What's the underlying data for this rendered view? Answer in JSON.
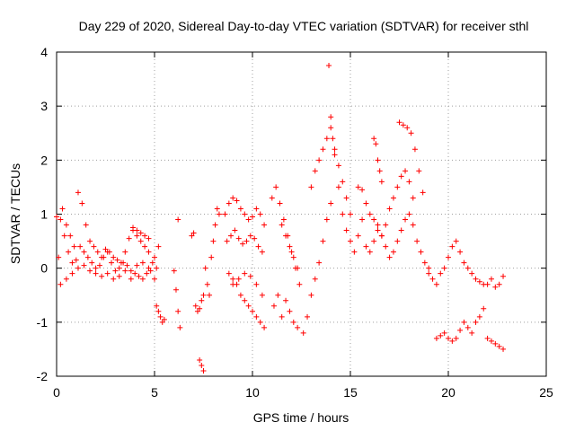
{
  "chart_data": {
    "type": "scatter",
    "title": "Day 229 of 2020, Sidereal Day-to-day VTEC variation (SDTVAR) for receiver sthl",
    "xlabel": "GPS time / hours",
    "ylabel": "SDTVAR / TECUs",
    "xlim": [
      0,
      25
    ],
    "ylim": [
      -2,
      4
    ],
    "x_ticks": [
      "0",
      "5",
      "10",
      "15",
      "20",
      "25"
    ],
    "y_ticks": [
      "-2",
      "-1",
      "0",
      "1",
      "2",
      "3",
      "4"
    ],
    "grid": true,
    "marker": "+",
    "color": "#ff0000",
    "series": [
      {
        "name": "SDTVAR",
        "x": [
          0.0,
          0.2,
          0.4,
          0.6,
          0.8,
          1.0,
          1.2,
          1.4,
          1.6,
          1.8,
          2.0,
          2.2,
          2.4,
          2.6,
          2.8,
          3.0,
          3.2,
          3.4,
          3.6,
          3.8,
          4.0,
          4.2,
          4.4,
          4.6,
          4.8,
          5.0,
          5.2,
          0.1,
          0.3,
          0.5,
          0.7,
          0.9,
          1.1,
          1.3,
          1.5,
          1.7,
          1.9,
          2.1,
          2.3,
          2.5,
          2.7,
          2.9,
          3.1,
          3.3,
          3.5,
          3.7,
          3.9,
          4.1,
          4.3,
          4.5,
          4.7,
          4.9,
          5.1,
          0.2,
          0.5,
          0.8,
          1.1,
          1.4,
          1.7,
          2.0,
          2.3,
          2.6,
          2.9,
          3.2,
          3.5,
          3.8,
          4.1,
          4.4,
          4.7,
          5.0,
          5.1,
          5.2,
          5.3,
          5.4,
          5.5,
          6.0,
          6.1,
          6.2,
          6.3,
          6.9,
          7.0,
          7.1,
          7.2,
          7.3,
          7.4,
          7.5,
          7.3,
          7.4,
          7.5,
          7.6,
          7.7,
          7.8,
          7.9,
          8.0,
          8.1,
          8.2,
          8.3,
          8.6,
          8.8,
          9.0,
          9.2,
          9.4,
          9.6,
          9.8,
          10.0,
          10.2,
          10.4,
          10.6,
          8.7,
          8.9,
          9.1,
          9.3,
          9.5,
          9.7,
          9.9,
          10.1,
          10.3,
          10.5,
          8.8,
          9.0,
          9.2,
          9.4,
          9.6,
          9.8,
          10.0,
          10.2,
          10.4,
          10.6,
          9.0,
          9.3,
          9.6,
          9.9,
          10.2,
          10.5,
          11.0,
          11.2,
          11.4,
          11.6,
          11.8,
          12.0,
          12.2,
          12.4,
          11.1,
          11.3,
          11.5,
          11.7,
          11.9,
          12.1,
          12.3,
          11.5,
          11.7,
          11.9,
          12.1,
          12.3,
          12.6,
          12.8,
          13.0,
          13.2,
          13.4,
          13.6,
          13.8,
          14.0,
          13.0,
          13.2,
          13.4,
          13.6,
          13.8,
          14.0,
          14.2,
          14.4,
          14.6,
          14.8,
          15.0,
          15.2,
          15.4,
          15.6,
          13.9,
          14.0,
          14.1,
          14.2,
          14.4,
          14.6,
          14.8,
          15.0,
          15.4,
          15.6,
          15.8,
          16.0,
          16.2,
          16.4,
          16.6,
          16.8,
          17.0,
          17.2,
          17.4,
          17.6,
          17.8,
          18.0,
          18.2,
          15.8,
          16.0,
          16.2,
          16.4,
          16.6,
          16.8,
          17.0,
          17.2,
          17.4,
          17.6,
          17.8,
          18.0,
          18.2,
          18.4,
          18.6,
          18.8,
          19.0,
          16.2,
          16.3,
          16.4,
          16.5,
          16.6,
          17.5,
          17.7,
          17.9,
          18.1,
          18.3,
          18.5,
          18.7,
          19.0,
          19.2,
          19.4,
          19.6,
          19.8,
          20.0,
          20.2,
          20.4,
          20.6,
          20.8,
          21.0,
          21.2,
          21.4,
          21.6,
          21.8,
          22.0,
          22.2,
          22.4,
          22.6,
          22.8,
          19.4,
          19.6,
          19.8,
          20.0,
          20.2,
          20.4,
          20.6,
          20.8,
          21.0,
          21.2,
          21.4,
          21.6,
          21.8,
          22.0,
          22.2,
          22.4,
          22.6,
          22.8,
          3.9,
          4.1,
          4.3,
          4.5,
          4.7,
          6.2
        ],
        "y": [
          0.95,
          0.9,
          0.6,
          0.3,
          0.1,
          0.15,
          0.4,
          0.3,
          0.2,
          0.1,
          0.0,
          0.05,
          0.2,
          0.3,
          0.1,
          -0.05,
          0.0,
          0.1,
          0.05,
          -0.05,
          -0.1,
          -0.15,
          -0.2,
          -0.1,
          -0.05,
          0.2,
          0.4,
          0.2,
          1.1,
          0.8,
          0.6,
          0.4,
          1.4,
          1.2,
          0.8,
          0.5,
          0.4,
          0.3,
          0.2,
          0.35,
          0.3,
          0.2,
          0.15,
          0.1,
          0.3,
          0.55,
          0.7,
          0.6,
          0.5,
          0.4,
          0.3,
          0.1,
          0.0,
          -0.3,
          -0.2,
          -0.1,
          0.0,
          0.05,
          -0.05,
          -0.1,
          -0.15,
          -0.1,
          -0.2,
          -0.15,
          -0.05,
          -0.2,
          0.05,
          0.1,
          0.0,
          -0.2,
          -0.7,
          -0.8,
          -0.9,
          -1.0,
          -0.95,
          -0.05,
          -0.4,
          -0.8,
          -1.1,
          0.6,
          0.65,
          -0.7,
          -0.8,
          -0.75,
          -0.6,
          -0.5,
          -1.7,
          -1.8,
          -1.9,
          0.0,
          -0.3,
          -0.5,
          0.2,
          0.5,
          0.8,
          1.1,
          1.0,
          1.0,
          1.2,
          1.3,
          1.25,
          1.1,
          1.0,
          0.9,
          0.95,
          1.1,
          1.0,
          0.8,
          0.5,
          0.6,
          0.7,
          0.55,
          0.45,
          0.5,
          0.6,
          0.55,
          0.4,
          0.3,
          -0.1,
          -0.2,
          -0.3,
          -0.5,
          -0.6,
          -0.7,
          -0.8,
          -0.9,
          -1.0,
          -1.1,
          -0.3,
          -0.2,
          -0.1,
          -0.15,
          -0.3,
          -0.5,
          1.3,
          1.5,
          1.2,
          0.9,
          0.6,
          0.3,
          0.0,
          -0.3,
          -0.7,
          -0.5,
          -0.9,
          -0.6,
          -0.8,
          -1.0,
          -1.1,
          0.8,
          0.6,
          0.4,
          0.2,
          0.0,
          -1.2,
          -0.9,
          -0.5,
          -0.2,
          0.1,
          0.5,
          0.9,
          1.2,
          1.5,
          1.8,
          2.0,
          2.2,
          2.4,
          2.6,
          2.1,
          1.5,
          1.0,
          0.7,
          0.5,
          0.3,
          0.6,
          0.9,
          3.75,
          2.8,
          2.4,
          2.2,
          1.9,
          1.6,
          1.3,
          1.0,
          1.5,
          1.45,
          1.2,
          1.0,
          0.9,
          0.7,
          0.6,
          0.8,
          1.1,
          1.3,
          1.5,
          1.7,
          1.8,
          1.6,
          1.3,
          0.4,
          0.3,
          0.5,
          0.8,
          0.6,
          0.4,
          0.2,
          0.3,
          0.5,
          0.7,
          0.9,
          1.0,
          0.8,
          0.5,
          0.3,
          0.1,
          0.0,
          2.4,
          2.3,
          2.0,
          1.8,
          1.6,
          2.7,
          2.65,
          2.6,
          2.5,
          2.2,
          1.8,
          1.4,
          -0.1,
          -0.2,
          -0.3,
          -0.1,
          0.0,
          0.2,
          0.4,
          0.5,
          0.3,
          0.1,
          0.0,
          -0.1,
          -0.2,
          -0.25,
          -0.3,
          -0.3,
          -0.2,
          -0.35,
          -0.3,
          -0.15,
          -1.3,
          -1.25,
          -1.2,
          -1.3,
          -1.35,
          -1.3,
          -1.15,
          -1.0,
          -1.1,
          -1.2,
          -1.0,
          -0.9,
          -0.75,
          -1.3,
          -1.35,
          -1.4,
          -1.45,
          -1.5,
          0.75,
          0.7,
          0.65,
          0.6,
          0.55,
          0.9
        ]
      }
    ]
  }
}
